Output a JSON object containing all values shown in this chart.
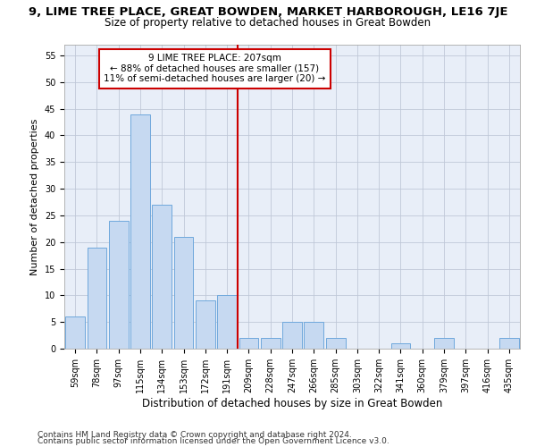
{
  "title": "9, LIME TREE PLACE, GREAT BOWDEN, MARKET HARBOROUGH, LE16 7JE",
  "subtitle": "Size of property relative to detached houses in Great Bowden",
  "xlabel": "Distribution of detached houses by size in Great Bowden",
  "ylabel": "Number of detached properties",
  "categories": [
    "59sqm",
    "78sqm",
    "97sqm",
    "115sqm",
    "134sqm",
    "153sqm",
    "172sqm",
    "191sqm",
    "209sqm",
    "228sqm",
    "247sqm",
    "266sqm",
    "285sqm",
    "303sqm",
    "322sqm",
    "341sqm",
    "360sqm",
    "379sqm",
    "397sqm",
    "416sqm",
    "435sqm"
  ],
  "values": [
    6,
    19,
    24,
    44,
    27,
    21,
    9,
    10,
    2,
    2,
    5,
    5,
    2,
    0,
    0,
    1,
    0,
    2,
    0,
    0,
    2
  ],
  "bar_color": "#c6d9f1",
  "bar_edge_color": "#6fa8dc",
  "annotation_line1": "9 LIME TREE PLACE: 207sqm",
  "annotation_line2": "← 88% of detached houses are smaller (157)",
  "annotation_line3": "11% of semi-detached houses are larger (20) →",
  "annotation_box_color": "#ffffff",
  "annotation_box_edge": "#cc0000",
  "vline_color": "#cc0000",
  "vline_x_index": 8,
  "ylim": [
    0,
    57
  ],
  "yticks": [
    0,
    5,
    10,
    15,
    20,
    25,
    30,
    35,
    40,
    45,
    50,
    55
  ],
  "footer1": "Contains HM Land Registry data © Crown copyright and database right 2024.",
  "footer2": "Contains public sector information licensed under the Open Government Licence v3.0.",
  "plot_bg_color": "#e8eef8",
  "grid_color": "#c0c8d8",
  "title_fontsize": 9.5,
  "subtitle_fontsize": 8.5,
  "xlabel_fontsize": 8.5,
  "ylabel_fontsize": 8.0,
  "tick_fontsize": 7.0,
  "annotation_fontsize": 7.5,
  "footer_fontsize": 6.5
}
